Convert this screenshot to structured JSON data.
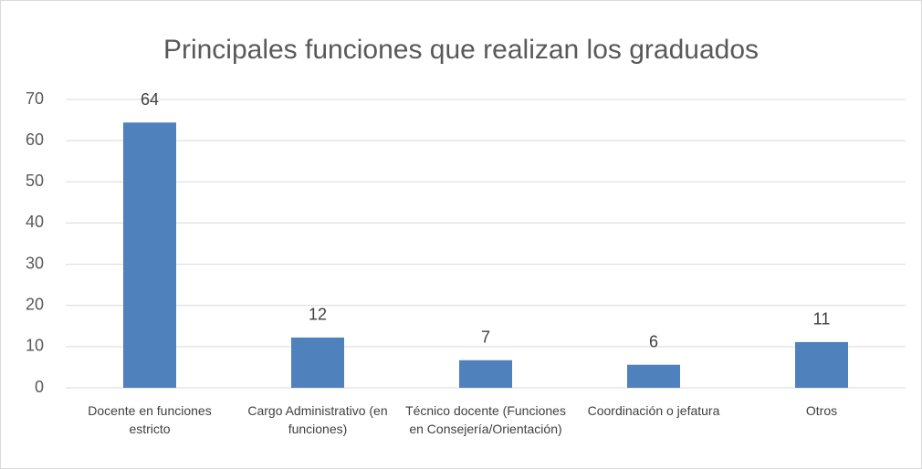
{
  "chart_data": {
    "type": "bar",
    "title": "Principales funciones que realizan los graduados",
    "categories": [
      "Docente en funciones estricto",
      "Cargo Administrativo (en funciones)",
      "Técnico docente (Funciones en Consejería/Orientación)",
      "Coordinación o jefatura",
      "Otros"
    ],
    "values": [
      64.4,
      12.2,
      6.7,
      5.6,
      11.1
    ],
    "value_labels": [
      "64",
      "12",
      "7",
      "6",
      "11"
    ],
    "color": "#4f81bd",
    "ylim": [
      0,
      70
    ],
    "yticks": [
      0,
      10,
      20,
      30,
      40,
      50,
      60,
      70
    ],
    "grid": true
  }
}
